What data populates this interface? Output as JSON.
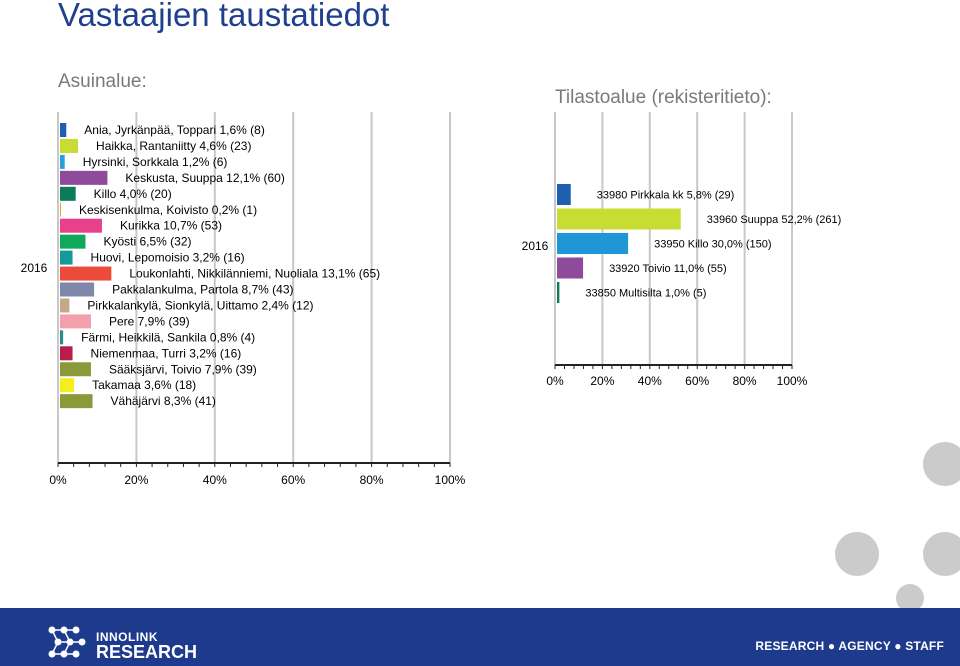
{
  "page": {
    "title": "Vastaajien taustatiedot"
  },
  "footer": {
    "brand_line1": "INNOLINK",
    "brand_line2": "RESEARCH",
    "tagline": "RESEARCH ● AGENCY ● STAFF"
  },
  "chart_data": [
    {
      "type": "bar",
      "orientation": "horizontal",
      "title": "Asuinalue:",
      "category_label": "2016",
      "xlim": [
        0,
        100
      ],
      "x_ticks": [
        "0%",
        "20%",
        "40%",
        "60%",
        "80%",
        "100%"
      ],
      "grid": true,
      "series": [
        {
          "name": "Ania, Jyrkänpää, Toppari 1,6% (8)",
          "value": 1.6,
          "color": "#1f5fb0"
        },
        {
          "name": "Haikka, Rantaniitty 4,6% (23)",
          "value": 4.6,
          "color": "#c8dc32"
        },
        {
          "name": "Hyrsinki, Sorkkala 1,2% (6)",
          "value": 1.2,
          "color": "#2a9fd6"
        },
        {
          "name": "Keskusta, Suuppa 12,1% (60)",
          "value": 12.1,
          "color": "#8e4b9c"
        },
        {
          "name": "Killo 4,0% (20)",
          "value": 4.0,
          "color": "#0d7a5a"
        },
        {
          "name": "Keskisenkulma, Koivisto 0,2% (1)",
          "value": 0.2,
          "color": "#f0a020"
        },
        {
          "name": "Kurikka 10,7% (53)",
          "value": 10.7,
          "color": "#e8408a"
        },
        {
          "name": "Kyösti 6,5% (32)",
          "value": 6.5,
          "color": "#10a85a"
        },
        {
          "name": "Huovi, Lepomoisio 3,2% (16)",
          "value": 3.2,
          "color": "#159a9a"
        },
        {
          "name": "Loukonlahti, Nikkilänniemi, Nuoliala 13,1% (65)",
          "value": 13.1,
          "color": "#ec4b3c"
        },
        {
          "name": "Pakkalankulma, Partola 8,7% (43)",
          "value": 8.7,
          "color": "#7f88aa"
        },
        {
          "name": "Pirkkalankylä, Sionkylä, Uittamo 2,4% (12)",
          "value": 2.4,
          "color": "#c4a88a"
        },
        {
          "name": "Pere 7,9% (39)",
          "value": 7.9,
          "color": "#f4a0ac"
        },
        {
          "name": "Färmi, Heikkilä, Sankila 0,8% (4)",
          "value": 0.8,
          "color": "#2c8a82"
        },
        {
          "name": "Niemenmaa, Turri 3,2% (16)",
          "value": 3.2,
          "color": "#b81e4a"
        },
        {
          "name": "Sääksjärvi, Toivio 7,9% (39)",
          "value": 7.9,
          "color": "#8a9a3a"
        },
        {
          "name": "Takamaa 3,6% (18)",
          "value": 3.6,
          "color": "#f4ee20"
        },
        {
          "name": "Vähäjärvi 8,3% (41)",
          "value": 8.3,
          "color": "#8a9a3a"
        }
      ]
    },
    {
      "type": "bar",
      "orientation": "horizontal",
      "title": "Tilastoalue (rekisteritieto):",
      "category_label": "2016",
      "xlim": [
        0,
        100
      ],
      "x_ticks": [
        "0%",
        "20%",
        "40%",
        "60%",
        "80%",
        "100%"
      ],
      "grid": true,
      "series": [
        {
          "name": "33980 Pirkkala kk 5,8% (29)",
          "value": 5.8,
          "color": "#1f5fb0"
        },
        {
          "name": "33960 Suuppa 52,2% (261)",
          "value": 52.2,
          "color": "#c8dc32"
        },
        {
          "name": "33950 Killo 30,0% (150)",
          "value": 30.0,
          "color": "#1f96d6"
        },
        {
          "name": "33920 Toivio 11,0% (55)",
          "value": 11.0,
          "color": "#8e4b9c"
        },
        {
          "name": "33850 Multisilta 1,0% (5)",
          "value": 1.0,
          "color": "#0d7a5a"
        }
      ]
    }
  ]
}
